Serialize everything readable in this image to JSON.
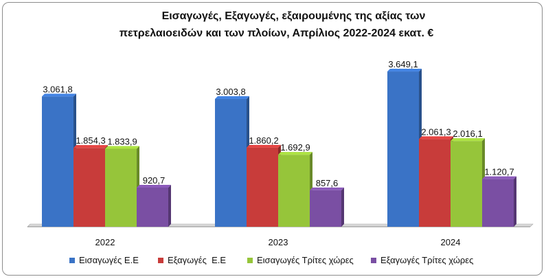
{
  "chart_data": {
    "type": "bar",
    "title_line1": "Εισαγωγές, Εξαγωγές, εξαιρουμένης της αξίας των",
    "title_line2": "πετρελαιοειδών και των πλοίων, Απρίλιος 2022-2024 εκατ. €",
    "categories": [
      "2022",
      "2023",
      "2024"
    ],
    "series": [
      {
        "name": "Εισαγωγές Ε.Ε",
        "values": [
          3061.8,
          3003.8,
          3649.1
        ],
        "labels": [
          "3.061,8",
          "3.003,8",
          "3.649,1"
        ],
        "color": "#3a73c6"
      },
      {
        "name": "Εξαγωγές  Ε.Ε",
        "values": [
          1854.3,
          1860.2,
          2061.3
        ],
        "labels": [
          "1.854,3",
          "1.860,2",
          "2.061,3"
        ],
        "color": "#c83c3a"
      },
      {
        "name": "Εισαγωγές Τρίτες χώρες",
        "values": [
          1833.9,
          1692.9,
          2016.1
        ],
        "labels": [
          "1.833,9",
          "1.692,9",
          "2.016,1"
        ],
        "color": "#96c53a"
      },
      {
        "name": "Εξαγωγές Τρίτες χώρες",
        "values": [
          920.7,
          857.6,
          1120.7
        ],
        "labels": [
          "920,7",
          "857,6",
          "1.120,7"
        ],
        "color": "#7a4fa3"
      }
    ],
    "ylim": [
      0,
      3650
    ],
    "grid": false,
    "legend_position": "bottom"
  }
}
